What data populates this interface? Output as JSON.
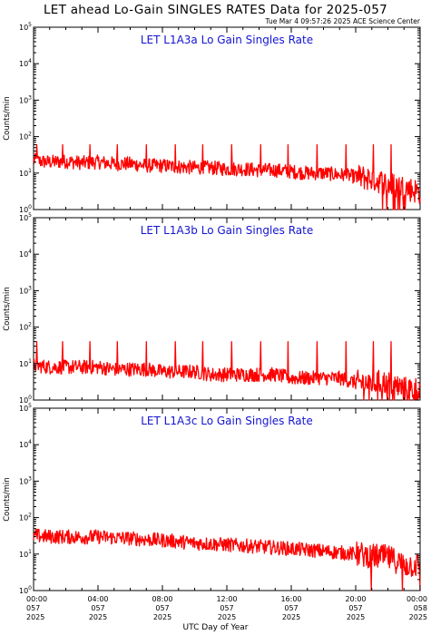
{
  "title": "LET ahead Lo-Gain SINGLES RATES Data for 2025-057",
  "timestamp": "Tue Mar  4 09:57:26 2025 ACE Science Center",
  "x_axis_label": "UTC Day of Year",
  "y_axis_label": "Counts/min",
  "colors": {
    "series": "#ff0000",
    "panel_title": "#1414d2",
    "axes": "#000000"
  },
  "x_ticks": [
    {
      "time": "00:00",
      "doy": "057",
      "year": "2025"
    },
    {
      "time": "04:00",
      "doy": "057",
      "year": "2025"
    },
    {
      "time": "08:00",
      "doy": "057",
      "year": "2025"
    },
    {
      "time": "12:00",
      "doy": "057",
      "year": "2025"
    },
    {
      "time": "16:00",
      "doy": "057",
      "year": "2025"
    },
    {
      "time": "20:00",
      "doy": "057",
      "year": "2025"
    },
    {
      "time": "00:00",
      "doy": "058",
      "year": "2025"
    }
  ],
  "y_ticks": [
    "10^0",
    "10^1",
    "10^2",
    "10^3",
    "10^4",
    "10^5"
  ],
  "chart_data": [
    {
      "type": "line",
      "title": "LET L1A3a Lo Gain Singles Rate",
      "xlabel": "UTC Day of Year",
      "ylabel": "Counts/min",
      "y_scale": "log",
      "ylim": [
        1,
        100000
      ],
      "xlim": [
        0,
        24
      ],
      "x_unit": "hours of DOY 057",
      "x": [
        0,
        1,
        2,
        3,
        4,
        5,
        6,
        7,
        8,
        9,
        10,
        11,
        12,
        13,
        14,
        15,
        16,
        17,
        18,
        19,
        20,
        21,
        22,
        23,
        24
      ],
      "values": [
        22,
        20,
        21,
        19,
        20,
        18,
        18,
        16,
        16,
        15,
        14,
        14,
        13,
        13,
        12,
        12,
        11,
        10,
        10,
        9,
        8,
        7,
        5,
        4,
        3
      ],
      "spike_hours": [
        0.2,
        1.8,
        3.5,
        5.2,
        7.0,
        8.8,
        10.5,
        12.3,
        14.1,
        15.8,
        17.6,
        19.4,
        21.1,
        22.2
      ],
      "spike_value": 60
    },
    {
      "type": "line",
      "title": "LET L1A3b Lo Gain Singles Rate",
      "xlabel": "UTC Day of Year",
      "ylabel": "Counts/min",
      "y_scale": "log",
      "ylim": [
        1,
        100000
      ],
      "xlim": [
        0,
        24
      ],
      "x_unit": "hours of DOY 057",
      "x": [
        0,
        1,
        2,
        3,
        4,
        5,
        6,
        7,
        8,
        9,
        10,
        11,
        12,
        13,
        14,
        15,
        16,
        17,
        18,
        19,
        20,
        21,
        22,
        23,
        24
      ],
      "values": [
        9,
        8,
        8,
        8,
        8,
        7,
        7,
        7,
        6,
        6,
        6,
        5,
        5,
        5,
        5,
        5,
        4,
        4,
        4,
        4,
        3,
        3,
        3,
        2,
        2
      ],
      "spike_hours": [
        0.2,
        1.8,
        3.5,
        5.2,
        7.0,
        8.8,
        10.5,
        12.3,
        14.1,
        15.8,
        17.6,
        19.4,
        21.1,
        22.2
      ],
      "spike_value": 40
    },
    {
      "type": "line",
      "title": "LET L1A3c Lo Gain Singles Rate",
      "xlabel": "UTC Day of Year",
      "ylabel": "Counts/min",
      "y_scale": "log",
      "ylim": [
        1,
        100000
      ],
      "xlim": [
        0,
        24
      ],
      "x_unit": "hours of DOY 057",
      "x": [
        0,
        1,
        2,
        3,
        4,
        5,
        6,
        7,
        8,
        9,
        10,
        11,
        12,
        13,
        14,
        15,
        16,
        17,
        18,
        19,
        20,
        21,
        22,
        23,
        24
      ],
      "values": [
        32,
        30,
        30,
        29,
        30,
        28,
        27,
        25,
        24,
        22,
        20,
        19,
        18,
        17,
        16,
        15,
        14,
        13,
        12,
        11,
        10,
        9,
        8,
        5,
        5
      ],
      "spike_hours": [],
      "spike_value": 70
    }
  ]
}
